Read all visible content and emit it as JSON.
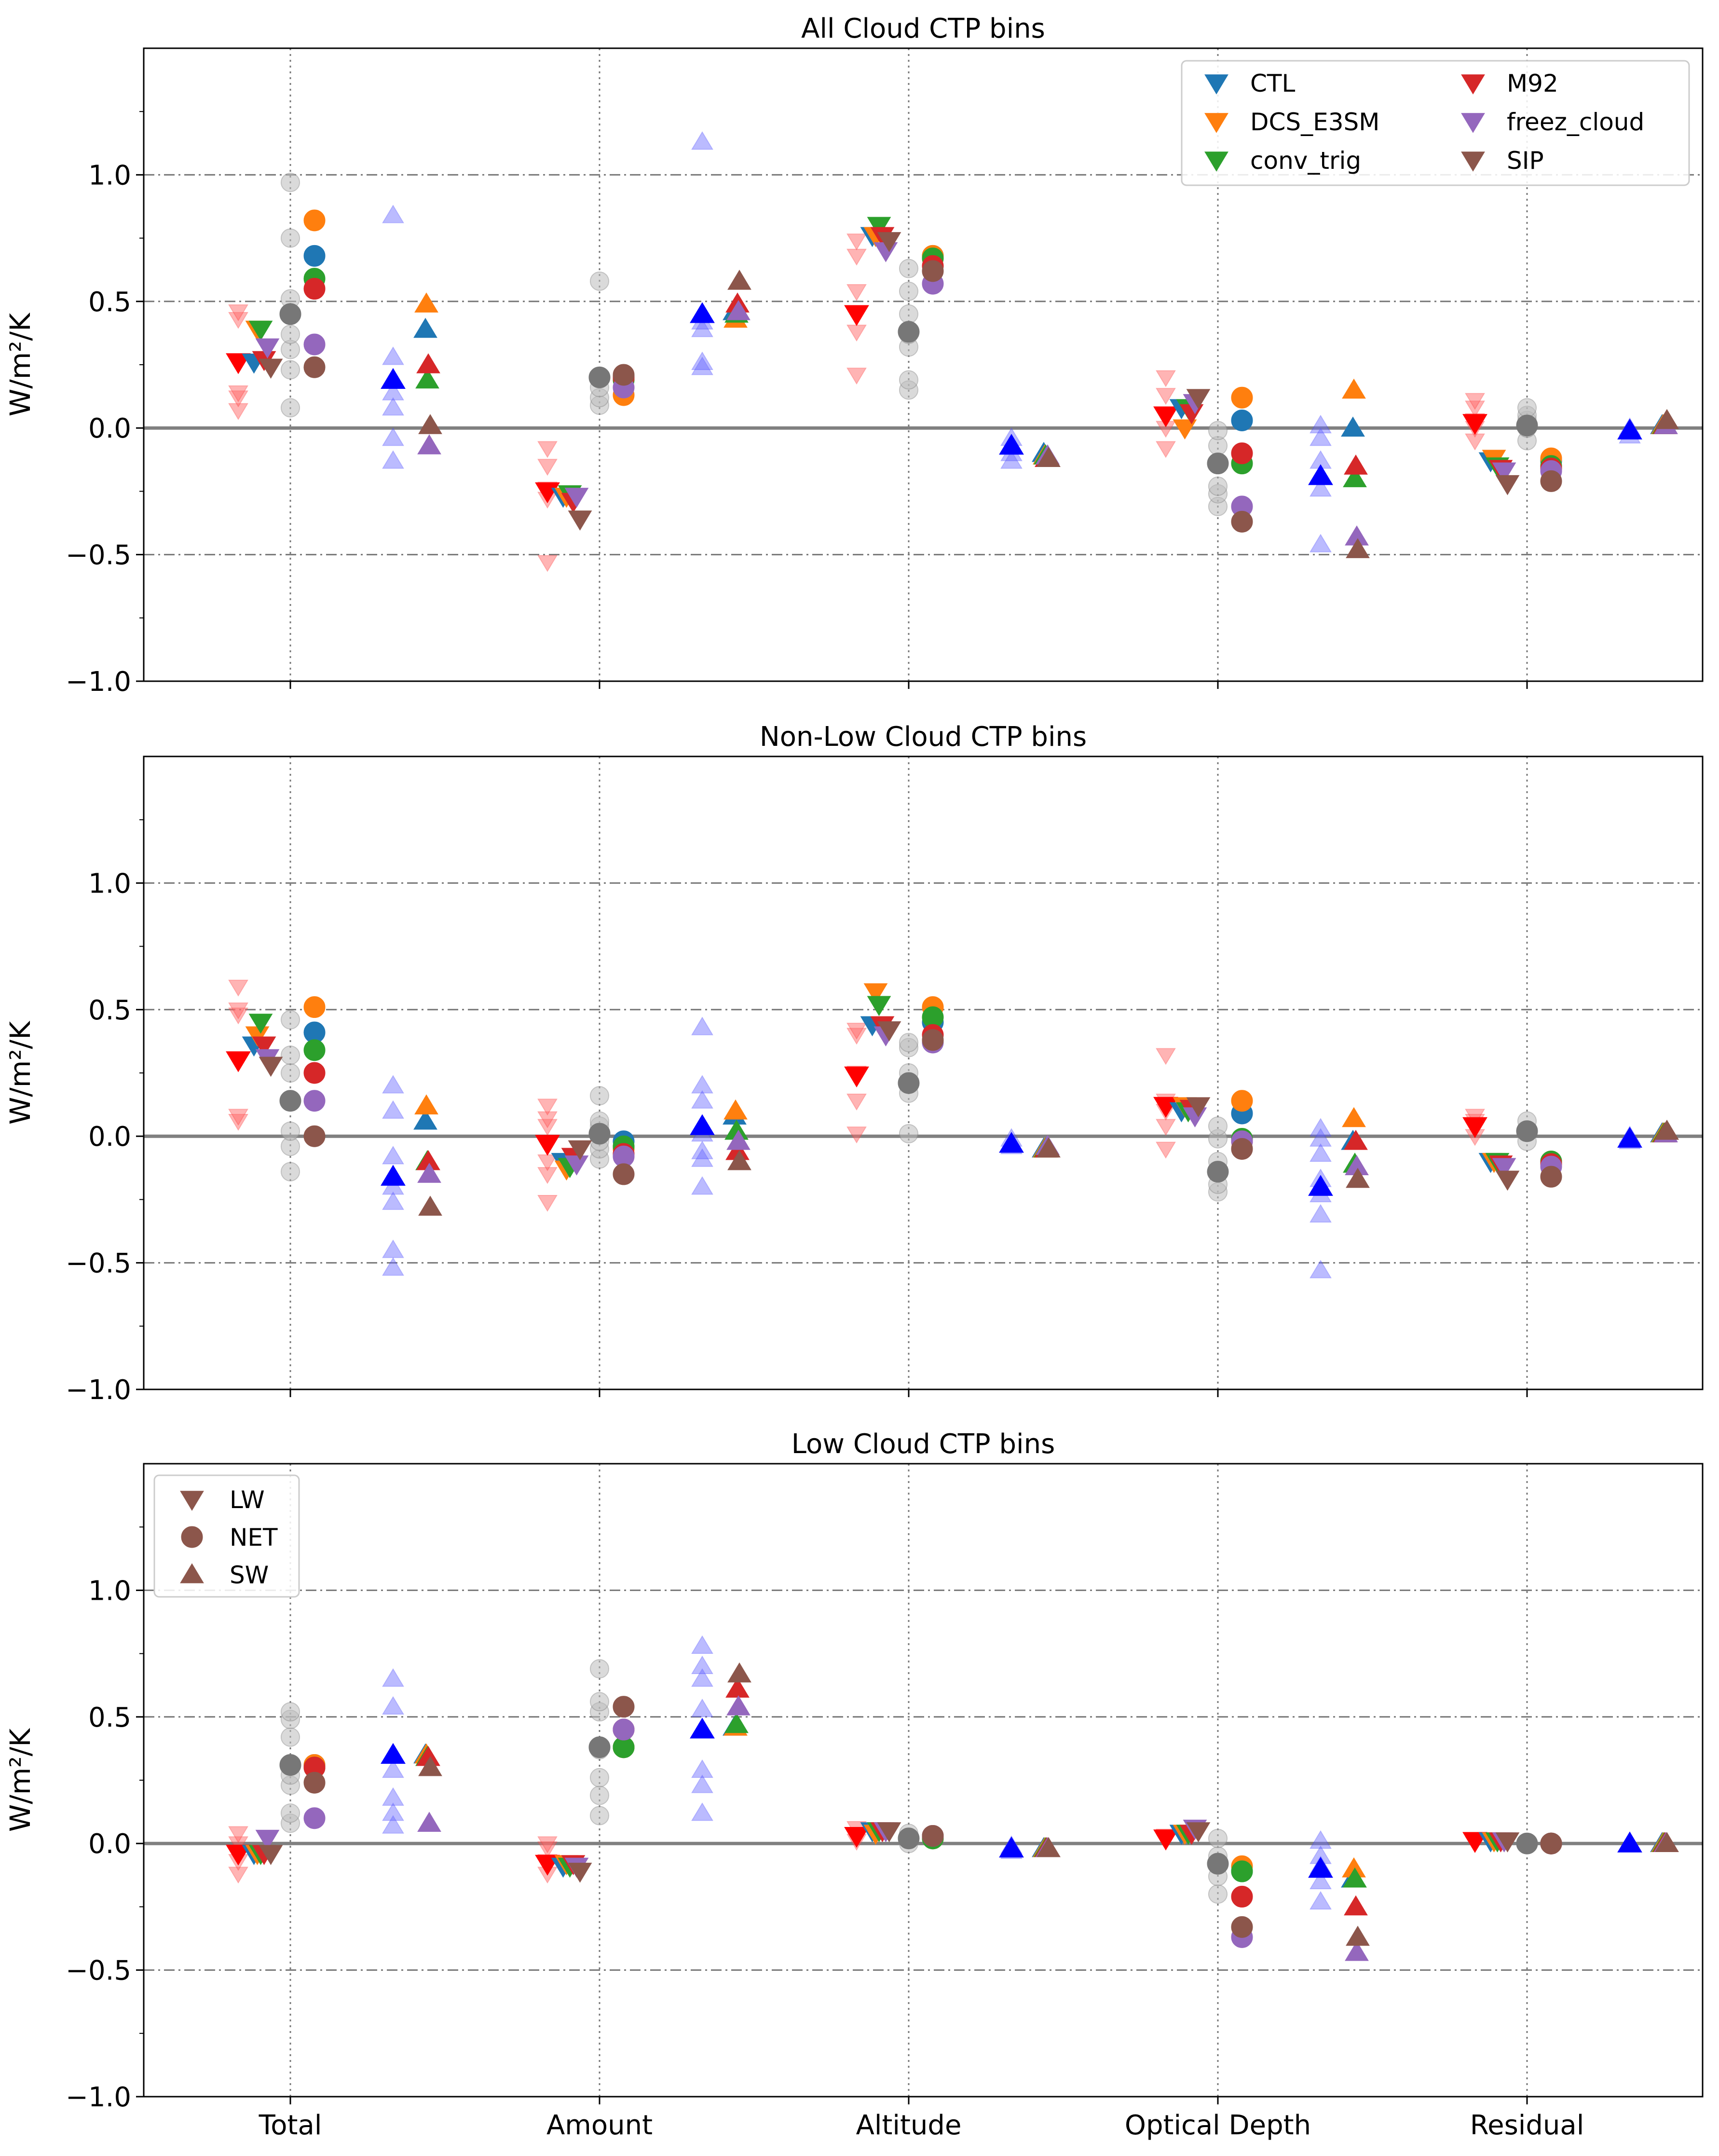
{
  "figure": {
    "y_label": "W/m²/K",
    "categories": [
      "Total",
      "Amount",
      "Altitude",
      "Optical Depth",
      "Residual"
    ],
    "y_ticks": [
      -1.0,
      -0.5,
      0.0,
      0.5,
      1.0
    ],
    "y_tick_labels": [
      "−1.0",
      "−0.5",
      "0.0",
      "0.5",
      "1.0"
    ],
    "experiment_legend": [
      {
        "label": "CTL",
        "color": "#1f77b4"
      },
      {
        "label": "DCS_E3SM",
        "color": "#ff7f0e"
      },
      {
        "label": "conv_trig",
        "color": "#2ca02c"
      },
      {
        "label": "M92",
        "color": "#d62728"
      },
      {
        "label": "freez_cloud",
        "color": "#9467bd"
      },
      {
        "label": "SIP",
        "color": "#8c564b"
      }
    ],
    "component_legend": [
      {
        "label": "LW",
        "marker": "triangle-down",
        "color": "#8c564b"
      },
      {
        "label": "NET",
        "marker": "circle",
        "color": "#8c564b"
      },
      {
        "label": "SW",
        "marker": "triangle-up",
        "color": "#8c564b"
      }
    ]
  },
  "chart_data": [
    {
      "type": "scatter",
      "title": "All Cloud CTP bins",
      "ylabel": "W/m²/K",
      "ylim": [
        -1.0,
        1.5
      ],
      "categories": [
        "Total",
        "Amount",
        "Altitude",
        "Optical Depth",
        "Residual"
      ],
      "series": [
        {
          "name": "CTL",
          "LW": [
            0.26,
            -0.27,
            0.76,
            0.08,
            -0.13
          ],
          "NET": [
            0.68,
            0.2,
            0.68,
            0.03,
            -0.13
          ],
          "SW": [
            0.39,
            0.46,
            -0.1,
            0.0,
            0.01
          ]
        },
        {
          "name": "DCS_E3SM",
          "LW": [
            0.39,
            -0.27,
            0.76,
            0.0,
            -0.12
          ],
          "NET": [
            0.82,
            0.13,
            0.68,
            0.12,
            -0.12
          ],
          "SW": [
            0.49,
            0.43,
            -0.11,
            0.15,
            0.01
          ]
        },
        {
          "name": "conv_trig",
          "LW": [
            0.39,
            -0.26,
            0.8,
            0.08,
            -0.15
          ],
          "NET": [
            0.59,
            0.19,
            0.67,
            -0.14,
            -0.15
          ],
          "SW": [
            0.19,
            0.45,
            -0.11,
            -0.2,
            0.01
          ]
        },
        {
          "name": "M92",
          "LW": [
            0.27,
            -0.29,
            0.76,
            0.06,
            -0.16
          ],
          "NET": [
            0.55,
            0.2,
            0.64,
            -0.1,
            -0.16
          ],
          "SW": [
            0.25,
            0.49,
            -0.12,
            -0.15,
            0.01
          ]
        },
        {
          "name": "freez_cloud",
          "LW": [
            0.32,
            -0.27,
            0.7,
            0.1,
            -0.17
          ],
          "NET": [
            0.33,
            0.16,
            0.57,
            -0.31,
            -0.17
          ],
          "SW": [
            -0.07,
            0.46,
            -0.11,
            -0.43,
            0.01
          ]
        },
        {
          "name": "SIP",
          "LW": [
            0.24,
            -0.36,
            0.74,
            0.12,
            -0.22
          ],
          "NET": [
            0.24,
            0.21,
            0.62,
            -0.37,
            -0.21
          ],
          "SW": [
            0.01,
            0.58,
            -0.12,
            -0.48,
            0.03
          ]
        }
      ],
      "ensemble_mean": {
        "LW": [
          0.26,
          -0.25,
          0.45,
          0.05,
          0.02
        ],
        "NET": [
          0.45,
          0.2,
          0.38,
          -0.14,
          0.01
        ],
        "SW": [
          0.19,
          0.45,
          -0.07,
          -0.19,
          -0.01
        ]
      },
      "ensemble_members": {
        "LW": [
          [
            0.07,
            0.12,
            0.14,
            0.43,
            0.46
          ],
          [
            -0.53,
            -0.28,
            -0.24,
            -0.15,
            -0.08
          ],
          [
            0.21,
            0.38,
            0.54,
            0.68,
            0.74
          ],
          [
            -0.08,
            0.0,
            0.05,
            0.13,
            0.2
          ],
          [
            -0.05,
            0.0,
            0.03,
            0.08,
            0.11
          ]
        ],
        "NET": [
          [
            0.08,
            0.23,
            0.31,
            0.37,
            0.51,
            0.75,
            0.97
          ],
          [
            0.09,
            0.12,
            0.16,
            0.58
          ],
          [
            0.15,
            0.19,
            0.32,
            0.37,
            0.45,
            0.54,
            0.63
          ],
          [
            -0.31,
            -0.26,
            -0.23,
            -0.14,
            -0.07,
            -0.01
          ],
          [
            -0.05,
            0.0,
            0.03,
            0.05,
            0.08
          ]
        ],
        "SW": [
          [
            -0.13,
            -0.04,
            0.08,
            0.14,
            0.19,
            0.28,
            0.84
          ],
          [
            0.24,
            0.26,
            0.39,
            0.42,
            1.13
          ],
          [
            -0.13,
            -0.1,
            -0.07,
            -0.04
          ],
          [
            -0.46,
            -0.24,
            -0.13,
            -0.04,
            0.01
          ],
          [
            -0.03,
            -0.01,
            0.0
          ]
        ]
      }
    },
    {
      "type": "scatter",
      "title": "Non-Low Cloud CTP bins",
      "ylabel": "W/m²/K",
      "ylim": [
        -1.0,
        1.5
      ],
      "categories": [
        "Total",
        "Amount",
        "Altitude",
        "Optical Depth",
        "Residual"
      ],
      "series": [
        {
          "name": "CTL",
          "LW": [
            0.36,
            -0.1,
            0.44,
            0.1,
            -0.1
          ],
          "NET": [
            0.41,
            -0.02,
            0.45,
            0.09,
            -0.1
          ],
          "SW": [
            0.06,
            0.08,
            -0.05,
            -0.02,
            0.01
          ]
        },
        {
          "name": "DCS_E3SM",
          "LW": [
            0.4,
            -0.13,
            0.57,
            0.12,
            -0.1
          ],
          "NET": [
            0.51,
            -0.05,
            0.51,
            0.14,
            -0.1
          ],
          "SW": [
            0.12,
            0.1,
            -0.05,
            0.07,
            0.01
          ]
        },
        {
          "name": "conv_trig",
          "LW": [
            0.45,
            -0.12,
            0.52,
            0.1,
            -0.1
          ],
          "NET": [
            0.34,
            -0.04,
            0.47,
            -0.01,
            -0.1
          ],
          "SW": [
            -0.1,
            0.02,
            -0.05,
            -0.11,
            0.01
          ]
        },
        {
          "name": "M92",
          "LW": [
            0.36,
            -0.08,
            0.44,
            0.11,
            -0.11
          ],
          "NET": [
            0.25,
            -0.07,
            0.4,
            -0.02,
            -0.11
          ],
          "SW": [
            -0.1,
            -0.06,
            -0.05,
            -0.02,
            0.01
          ]
        },
        {
          "name": "freez_cloud",
          "LW": [
            0.31,
            -0.11,
            0.4,
            0.08,
            -0.12
          ],
          "NET": [
            0.14,
            -0.08,
            0.37,
            -0.02,
            -0.12
          ],
          "SW": [
            -0.15,
            -0.02,
            -0.04,
            -0.12,
            0.01
          ]
        },
        {
          "name": "SIP",
          "LW": [
            0.28,
            -0.05,
            0.42,
            0.12,
            -0.17
          ],
          "NET": [
            0.0,
            -0.15,
            0.38,
            -0.05,
            -0.16
          ],
          "SW": [
            -0.28,
            -0.1,
            -0.05,
            -0.17,
            0.02
          ]
        }
      ],
      "ensemble_mean": {
        "LW": [
          0.3,
          -0.03,
          0.24,
          0.12,
          0.04
        ],
        "NET": [
          0.14,
          0.01,
          0.21,
          -0.14,
          0.02
        ],
        "SW": [
          -0.16,
          0.04,
          -0.03,
          -0.2,
          -0.01
        ]
      },
      "ensemble_members": {
        "LW": [
          [
            0.06,
            0.08,
            0.48,
            0.5,
            0.59
          ],
          [
            -0.26,
            -0.15,
            -0.1,
            0.04,
            0.07,
            0.12
          ],
          [
            0.01,
            0.14,
            0.25,
            0.4,
            0.42
          ],
          [
            -0.05,
            0.04,
            0.1,
            0.14,
            0.32
          ],
          [
            0.0,
            0.03,
            0.06,
            0.08
          ]
        ],
        "NET": [
          [
            -0.14,
            -0.04,
            0.02,
            0.25,
            0.32,
            0.46
          ],
          [
            -0.09,
            -0.05,
            -0.02,
            0.04,
            0.06,
            0.16
          ],
          [
            0.01,
            0.17,
            0.25,
            0.35,
            0.37
          ],
          [
            -0.22,
            -0.19,
            -0.1,
            -0.01,
            0.04
          ],
          [
            -0.02,
            0.02,
            0.06
          ]
        ],
        "SW": [
          [
            -0.52,
            -0.45,
            -0.26,
            -0.2,
            -0.08,
            0.1,
            0.2
          ],
          [
            -0.2,
            -0.09,
            -0.06,
            0.01,
            0.14,
            0.2,
            0.43
          ],
          [
            -0.04,
            -0.01
          ],
          [
            -0.53,
            -0.31,
            -0.23,
            -0.17,
            -0.07,
            -0.01,
            0.03
          ],
          [
            -0.02,
            0.0
          ]
        ]
      }
    },
    {
      "type": "scatter",
      "title": "Low Cloud CTP bins",
      "ylabel": "W/m²/K",
      "ylim": [
        -1.0,
        1.5
      ],
      "categories": [
        "Total",
        "Amount",
        "Altitude",
        "Optical Depth",
        "Residual"
      ],
      "series": [
        {
          "name": "CTL",
          "LW": [
            -0.04,
            -0.09,
            0.05,
            0.04,
            0.01
          ],
          "NET": [
            0.31,
            0.38,
            0.02,
            -0.11,
            0.0
          ],
          "SW": [
            0.35,
            0.46,
            -0.02,
            -0.14,
            0.0
          ]
        },
        {
          "name": "DCS_E3SM",
          "LW": [
            -0.04,
            -0.08,
            0.04,
            0.04,
            0.01
          ],
          "NET": [
            0.31,
            0.38,
            0.02,
            -0.09,
            0.0
          ],
          "SW": [
            0.35,
            0.46,
            -0.02,
            -0.1,
            0.0
          ]
        },
        {
          "name": "conv_trig",
          "LW": [
            -0.04,
            -0.09,
            0.05,
            0.04,
            0.01
          ],
          "NET": [
            0.3,
            0.38,
            0.02,
            -0.11,
            0.0
          ],
          "SW": [
            0.34,
            0.47,
            -0.02,
            -0.14,
            0.0
          ]
        },
        {
          "name": "M92",
          "LW": [
            -0.04,
            -0.08,
            0.05,
            0.04,
            0.01
          ],
          "NET": [
            0.3,
            0.45,
            0.03,
            -0.21,
            0.0
          ],
          "SW": [
            0.34,
            0.61,
            -0.02,
            -0.25,
            0.0
          ]
        },
        {
          "name": "freez_cloud",
          "LW": [
            0.02,
            -0.09,
            0.05,
            0.06,
            0.01
          ],
          "NET": [
            0.1,
            0.45,
            0.03,
            -0.37,
            0.0
          ],
          "SW": [
            0.08,
            0.54,
            -0.02,
            -0.43,
            0.0
          ]
        },
        {
          "name": "SIP",
          "LW": [
            -0.04,
            -0.11,
            0.05,
            0.05,
            0.01
          ],
          "NET": [
            0.24,
            0.54,
            0.03,
            -0.33,
            0.0
          ],
          "SW": [
            0.3,
            0.67,
            -0.02,
            -0.37,
            0.0
          ]
        }
      ],
      "ensemble_mean": {
        "LW": [
          -0.04,
          -0.08,
          0.03,
          0.02,
          0.01
        ],
        "NET": [
          0.31,
          0.38,
          0.02,
          -0.08,
          0.0
        ],
        "SW": [
          0.35,
          0.45,
          -0.02,
          -0.1,
          0.0
        ]
      },
      "ensemble_members": {
        "LW": [
          [
            -0.12,
            -0.07,
            0.0,
            0.04
          ],
          [
            -0.12,
            -0.07,
            -0.02,
            0.0
          ],
          [
            0.01,
            0.03,
            0.06
          ],
          [
            0.01,
            0.03
          ],
          [
            0.0,
            0.01
          ]
        ],
        "NET": [
          [
            0.08,
            0.12,
            0.23,
            0.27,
            0.42,
            0.49,
            0.52
          ],
          [
            0.11,
            0.19,
            0.26,
            0.37,
            0.52,
            0.56,
            0.69
          ],
          [
            0.0,
            0.02,
            0.04
          ],
          [
            -0.2,
            -0.13,
            -0.05,
            0.02
          ],
          [
            0.0
          ]
        ],
        "SW": [
          [
            0.07,
            0.12,
            0.18,
            0.29,
            0.54,
            0.65
          ],
          [
            0.12,
            0.23,
            0.29,
            0.53,
            0.65,
            0.7,
            0.78
          ],
          [
            -0.03,
            -0.01
          ],
          [
            -0.23,
            -0.15,
            -0.09,
            -0.05,
            0.01
          ],
          [
            0.0
          ]
        ]
      }
    }
  ]
}
